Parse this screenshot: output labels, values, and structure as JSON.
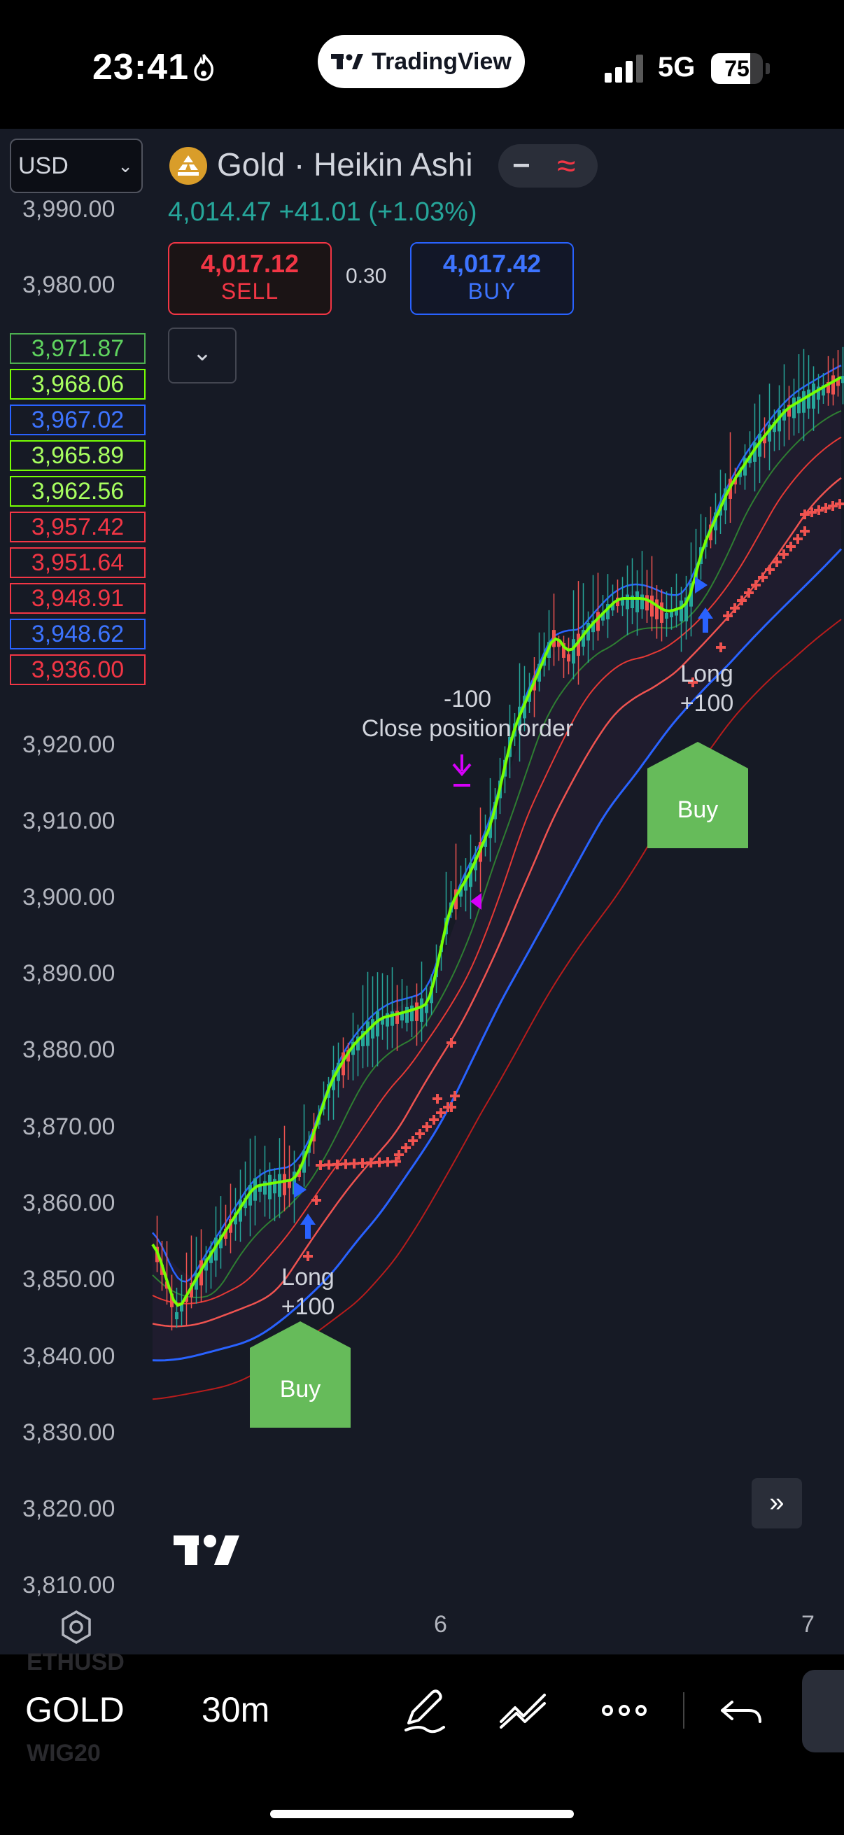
{
  "status_bar": {
    "time": "23:41",
    "app_pill": "TradingView",
    "network": "5G",
    "battery": 75
  },
  "header": {
    "currency": "USD",
    "symbol_title": "Gold · Heikin Ashi",
    "toggle_a": "−",
    "toggle_b": "≈",
    "price_line": "4,014.47 +41.01 (+1.03%)",
    "sell_price": "4,017.12",
    "sell_label": "SELL",
    "spread": "0.30",
    "buy_price": "4,017.42",
    "buy_label": "BUY"
  },
  "price_axis": [
    "3,990.00",
    "3,980.00",
    "3,920.00",
    "3,910.00",
    "3,900.00",
    "3,890.00",
    "3,880.00",
    "3,870.00",
    "3,860.00",
    "3,850.00",
    "3,840.00",
    "3,830.00",
    "3,820.00",
    "3,810.00"
  ],
  "price_badges": [
    {
      "value": "3,971.87",
      "color": "green"
    },
    {
      "value": "3,968.06",
      "color": "lime"
    },
    {
      "value": "3,967.02",
      "color": "blue"
    },
    {
      "value": "3,965.89",
      "color": "lime"
    },
    {
      "value": "3,962.56",
      "color": "lime"
    },
    {
      "value": "3,957.42",
      "color": "red"
    },
    {
      "value": "3,951.64",
      "color": "red"
    },
    {
      "value": "3,948.91",
      "color": "red"
    },
    {
      "value": "3,948.62",
      "color": "blue"
    },
    {
      "value": "3,936.00",
      "color": "red"
    }
  ],
  "annotations": {
    "close_qty": "-100",
    "close_text": "Close position order",
    "long1_label": "Long",
    "long1_qty": "+100",
    "long2_label": "Long",
    "long2_qty": "+100",
    "buy1": "Buy",
    "buy2": "Buy"
  },
  "time_axis": [
    "6",
    "7"
  ],
  "bottom_bar": {
    "symbol": "GOLD",
    "interval": "30m",
    "ghost_top": "ETHUSD",
    "ghost_bottom": "WIG20"
  },
  "colors": {
    "up": "#26a69a",
    "down": "#ef5350",
    "blue": "#2962ff",
    "lime": "#76ff03",
    "buy_green": "#66bb5a",
    "purple": "#d500f9"
  }
}
